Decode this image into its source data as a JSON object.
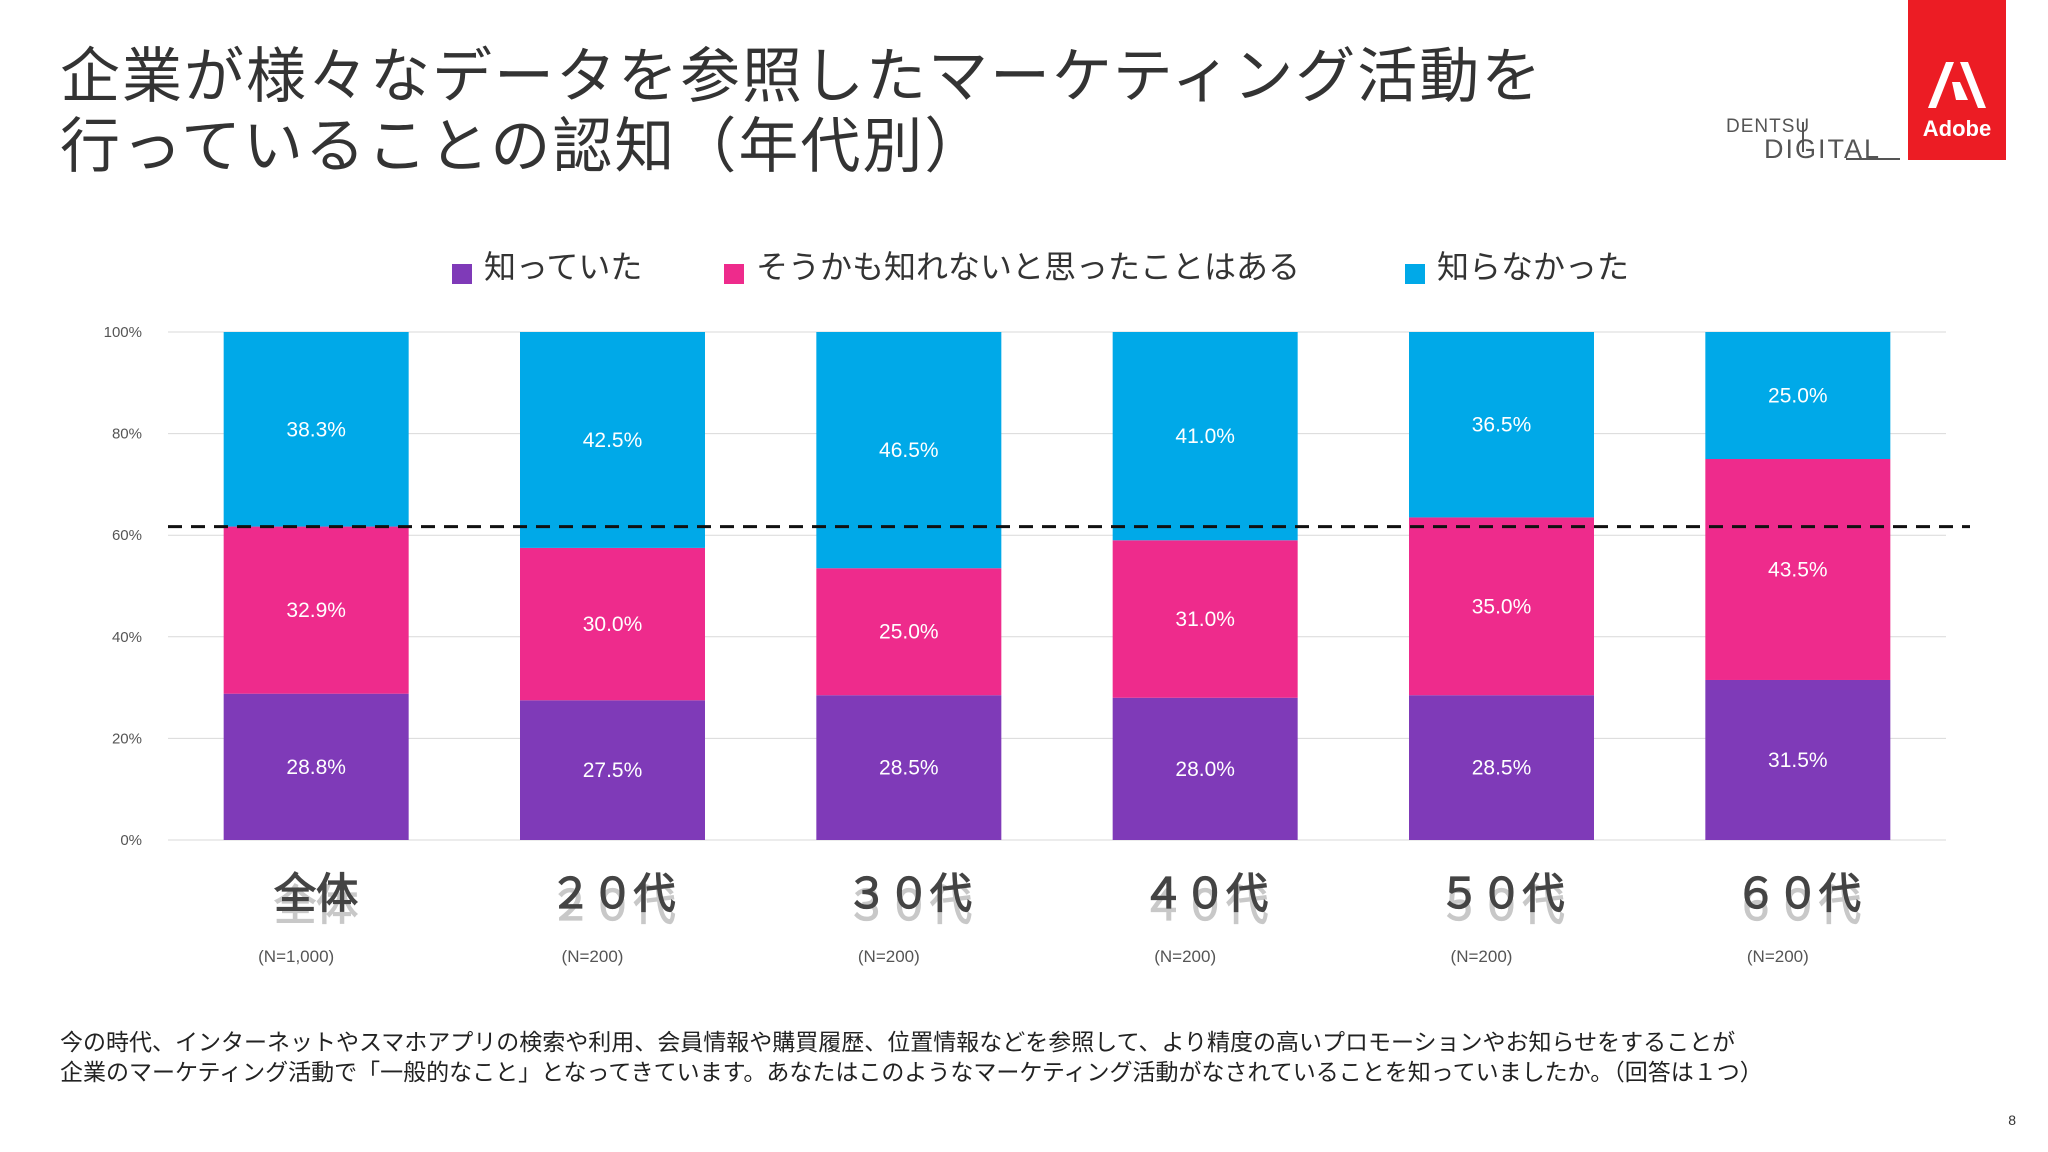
{
  "title_line1": "企業が様々なデータを参照したマーケティング活動を",
  "title_line2": "行っていることの認知（年代別）",
  "brand": {
    "dentsu_line1": "DENTSU",
    "dentsu_line2": "DIGITAL",
    "adobe": "Adobe"
  },
  "footnote_line1": "今の時代、インターネットやスマホアプリの検索や利用、会員情報や購買履歴、位置情報などを参照して、より精度の高いプロモーションやお知らせをすることが",
  "footnote_line2": "企業のマーケティング活動で「一般的なこと」となってきています。あなたはこのようなマーケティング活動がなされていることを知っていましたか。（回答は１つ）",
  "page_number": "8",
  "colors": {
    "knew": "#7f3ab8",
    "maybe": "#ee2b8c",
    "didnt": "#00a9e8"
  },
  "chart_data": {
    "type": "bar",
    "stacked": true,
    "categories": [
      "全体",
      "２０代",
      "３０代",
      "４０代",
      "５０代",
      "６０代"
    ],
    "sample_sizes": [
      "(N=1,000)",
      "(N=200)",
      "(N=200)",
      "(N=200)",
      "(N=200)",
      "(N=200)"
    ],
    "series": [
      {
        "name": "知っていた",
        "values": [
          28.8,
          27.5,
          28.5,
          28.0,
          28.5,
          31.5
        ],
        "labels": [
          "28.8%",
          "27.5%",
          "28.5%",
          "28.0%",
          "28.5%",
          "31.5%"
        ]
      },
      {
        "name": "そうかも知れないと思ったことはある",
        "values": [
          32.9,
          30.0,
          25.0,
          31.0,
          35.0,
          43.5
        ],
        "labels": [
          "32.9%",
          "30.0%",
          "25.0%",
          "31.0%",
          "35.0%",
          "43.5%"
        ]
      },
      {
        "name": "知らなかった",
        "values": [
          38.3,
          42.5,
          46.5,
          41.0,
          36.5,
          25.0
        ],
        "labels": [
          "38.3%",
          "42.5%",
          "46.5%",
          "41.0%",
          "36.5%",
          "25.0%"
        ]
      }
    ],
    "yticks": [
      "0%",
      "20%",
      "40%",
      "60%",
      "80%",
      "100%"
    ],
    "ylim": [
      0,
      100
    ],
    "reference_line": 61.7,
    "grid": true,
    "legend": "top"
  }
}
